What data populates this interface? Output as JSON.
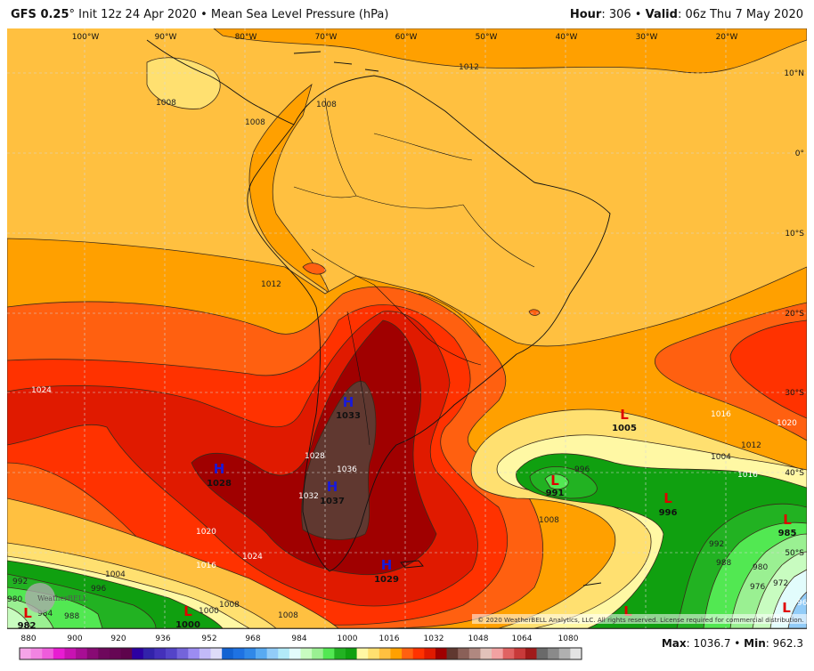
{
  "header": {
    "model": "GFS 0.25",
    "model_suffix": "°",
    "init": " Init 12z 24 Apr 2020 • Mean Sea Level Pressure (hPa)",
    "hour_label": "Hour",
    "hour": ": 306 • ",
    "valid_label": "Valid",
    "valid": ": 06z Thu 7 May 2020"
  },
  "longitudes": [
    "100°W",
    "90°W",
    "80°W",
    "70°W",
    "60°W",
    "50°W",
    "40°W",
    "30°W",
    "20°W"
  ],
  "latitudes": [
    "10°N",
    "0°",
    "10°S",
    "20°S",
    "30°S",
    "40°S",
    "50°S"
  ],
  "centers": [
    {
      "type": "H",
      "value": "1033"
    },
    {
      "type": "H",
      "value": "1028"
    },
    {
      "type": "H",
      "value": "1037"
    },
    {
      "type": "H",
      "value": "1029"
    },
    {
      "type": "L",
      "value": "1005"
    },
    {
      "type": "L",
      "value": "991"
    },
    {
      "type": "L",
      "value": "996"
    },
    {
      "type": "L",
      "value": "985"
    },
    {
      "type": "L",
      "value": "982"
    },
    {
      "type": "L",
      "value": "1000"
    },
    {
      "type": "L",
      "value": ""
    },
    {
      "type": "L",
      "value": ""
    }
  ],
  "contour_labels": [
    "1012",
    "1008",
    "1008",
    "1008",
    "1012",
    "1024",
    "1028",
    "1032",
    "1036",
    "1020",
    "1016",
    "1024",
    "1016",
    "1020",
    "1016",
    "1012",
    "1004",
    "1008",
    "996",
    "1008",
    "992",
    "988",
    "980",
    "976",
    "972",
    "964",
    "1004",
    "996",
    "992",
    "988",
    "984",
    "980",
    "1008",
    "1000"
  ],
  "copyright": "© 2020 WeatherBELL Analytics, LLC. All rights reserved. License required for commercial distribution.",
  "watermark": "WeatherBELL",
  "colorbar": {
    "ticks": [
      "880",
      "900",
      "920",
      "936",
      "952",
      "968",
      "984",
      "1000",
      "1016",
      "1032",
      "1048",
      "1064",
      "1080"
    ],
    "colors": [
      "#f6a4e8",
      "#f284e2",
      "#ee5cdc",
      "#e81cd2",
      "#c812b2",
      "#a80e94",
      "#880a74",
      "#6e085c",
      "#660654",
      "#5e044c",
      "#2c00a2",
      "#3222aa",
      "#4430ba",
      "#5444c8",
      "#7464da",
      "#9c8cf2",
      "#c2baf8",
      "#dedcf8",
      "#1262d2",
      "#1e72e2",
      "#3088e8",
      "#58aaf2",
      "#92ccf8",
      "#b2eaf8",
      "#e2fcfc",
      "#c8fcc0",
      "#9af092",
      "#52e852",
      "#22b222",
      "#10a010",
      "#fff8a4",
      "#ffe070",
      "#ffc040",
      "#ffa000",
      "#ff6010",
      "#ff3200",
      "#e01a00",
      "#a00000",
      "#603830",
      "#8a6058",
      "#b08880",
      "#e2c2ba",
      "#f2a2a2",
      "#e06262",
      "#c83a3a",
      "#a01a1a",
      "#6a6a6a",
      "#8a8a8a",
      "#b0b0b0",
      "#e4e4e4"
    ]
  },
  "stats": {
    "max_label": "Max",
    "max": ": 1036.7 • ",
    "min_label": "Min",
    "min": ": 962.3"
  }
}
